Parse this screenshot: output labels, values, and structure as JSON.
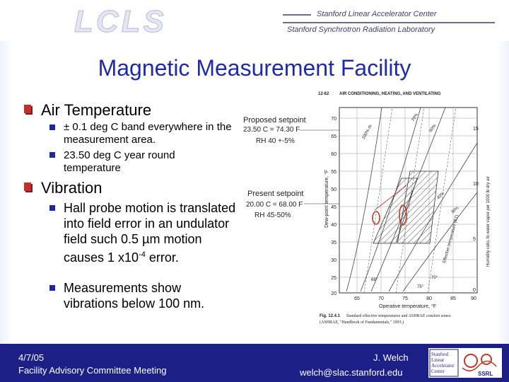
{
  "header": {
    "logo_text": "LCLS",
    "org_line1": "Stanford Linear Accelerator Center",
    "org_line2": "Stanford Synchrotron Radiation Laboratory"
  },
  "title": "Magnetic Measurement Facility",
  "bullets": [
    {
      "label": "Air Temperature",
      "sub": [
        "± 0.1 deg C band everywhere in the measurement area.",
        "23.50 deg C year round temperature"
      ]
    },
    {
      "label": "Vibration",
      "sub_rich": {
        "line1": "Hall probe motion is translated into field error in an undulator field such 0.5 ",
        "mu": "µ",
        "line2": "m motion causes 1 x10",
        "sup": "-4",
        "line3": " error."
      },
      "sub2": "Measurements show vibrations below 100 nm."
    }
  ],
  "figure": {
    "header_left": "12-62",
    "header_right": "AIR CONDITIONING, HEATING, AND VENTILATING",
    "proposed_title": "Proposed setpoint",
    "proposed_temp": "23.50 C = 74.30 F",
    "proposed_rh": "RH 40 +-5%",
    "present_title": "Present setpoint",
    "present_temp": "20.00 C = 68.00 F",
    "present_rh": "RH 45-50%",
    "y_axis_label": "Dew-point temperature, °F",
    "x_axis_label": "Operative temperature, °F",
    "right_axis_label": "Humidity ratio, lb water vapor per 1000 lb dry air",
    "y_ticks": [
      "70",
      "65",
      "60",
      "55",
      "50",
      "45",
      "40",
      "35",
      "30",
      "25",
      "20"
    ],
    "x_ticks": [
      "65",
      "70",
      "75",
      "80",
      "85",
      "90"
    ],
    "right_ticks": [
      "15",
      "10",
      "5",
      "0"
    ],
    "curve_labels": [
      "100% rh",
      "70%",
      "60%",
      "40%",
      "30%",
      "Effective temperature (ET)",
      "68°",
      "75°",
      "70°"
    ],
    "caption_label": "Fig. 12.4.1",
    "caption_text": "Standard effective temperatures and ASHRAE comfort zones.",
    "caption_text2": "(ASHRAE, \"Handbook of Fundamentals,\" 1993.)"
  },
  "footer": {
    "date": "4/7/05",
    "meeting": "Facility Advisory Committee Meeting",
    "author": "J. Welch",
    "email": "welch@slac.stanford.edu",
    "logo_lines": [
      "Stanford",
      "Linear",
      "Accelerator",
      "Center"
    ],
    "logo_side": "SSRL"
  },
  "colors": {
    "title": "#1f2ba6",
    "bullet_main": "#c0312b",
    "bullet_sub": "#1c2a9e",
    "footer_bg": "#1b1f86",
    "annotation_red": "#c0392b"
  }
}
